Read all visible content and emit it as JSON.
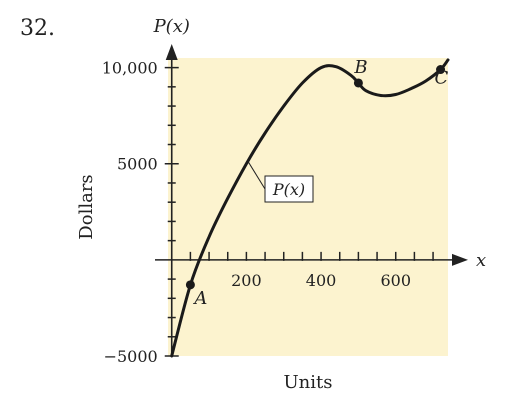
{
  "problem_number": "32.",
  "chart_data": {
    "type": "line",
    "title": "",
    "xlabel": "Units",
    "ylabel": "Dollars",
    "x_axis_symbol": "x",
    "y_axis_symbol": "P(x)",
    "xlim": [
      -10,
      740
    ],
    "ylim": [
      -5000,
      10500
    ],
    "x_ticks": [
      200,
      400,
      600
    ],
    "y_ticks": [
      -5000,
      5000,
      10000
    ],
    "x_tick_labels": [
      "200",
      "400",
      "600"
    ],
    "y_tick_labels": [
      "−5000",
      "5000",
      "10,000"
    ],
    "series": [
      {
        "name": "P(x)",
        "x": [
          0,
          50,
          100,
          150,
          200,
          250,
          300,
          350,
          400,
          440,
          480,
          500,
          520,
          560,
          600,
          640,
          680,
          720,
          740
        ],
        "y": [
          -5000,
          -1300,
          1200,
          3200,
          5000,
          6600,
          8000,
          9200,
          10000,
          10050,
          9600,
          9200,
          8800,
          8550,
          8600,
          8900,
          9300,
          9900,
          10400
        ]
      }
    ],
    "points": [
      {
        "label": "A",
        "x": 50,
        "y": -1300
      },
      {
        "label": "B",
        "x": 500,
        "y": 9200
      },
      {
        "label": "C",
        "x": 720,
        "y": 9900
      }
    ],
    "curve_label": "P(x)",
    "background_color": "#fcf3cf",
    "line_color": "#1a1a1a"
  }
}
